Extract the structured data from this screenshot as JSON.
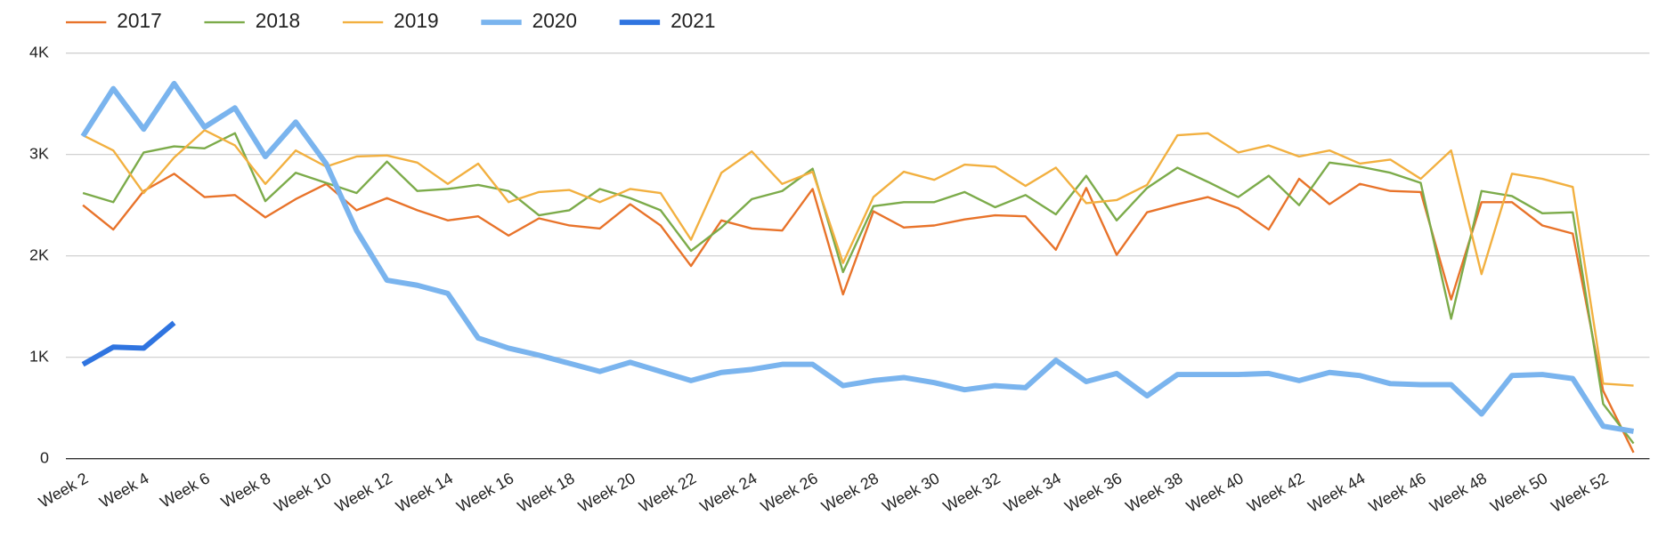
{
  "chart_data": {
    "type": "line",
    "categories": [
      "Week 2",
      null,
      "Week 4",
      null,
      "Week 6",
      null,
      "Week 8",
      null,
      "Week 10",
      null,
      "Week 12",
      null,
      "Week 14",
      null,
      "Week 16",
      null,
      "Week 18",
      null,
      "Week 20",
      null,
      "Week 22",
      null,
      "Week 24",
      null,
      "Week 26",
      null,
      "Week 28",
      null,
      "Week 30",
      null,
      "Week 32",
      null,
      "Week 34",
      null,
      "Week 36",
      null,
      "Week 38",
      null,
      "Week 40",
      null,
      "Week 42",
      null,
      "Week 44",
      null,
      "Week 46",
      null,
      "Week 48",
      null,
      "Week 50",
      null,
      "Week 52",
      null
    ],
    "series": [
      {
        "name": "2017",
        "color": "#e8732a",
        "line_width": 2,
        "values": [
          2500,
          2260,
          2640,
          2810,
          2580,
          2600,
          2380,
          2560,
          2710,
          2450,
          2570,
          2450,
          2350,
          2390,
          2200,
          2370,
          2300,
          2270,
          2510,
          2300,
          1900,
          2350,
          2270,
          2250,
          2660,
          1620,
          2440,
          2280,
          2300,
          2360,
          2400,
          2390,
          2060,
          2670,
          2010,
          2430,
          2510,
          2580,
          2470,
          2260,
          2760,
          2510,
          2710,
          2640,
          2630,
          1570,
          2530,
          2530,
          2300,
          2220,
          670,
          60
        ]
      },
      {
        "name": "2018",
        "color": "#7cab4a",
        "line_width": 2,
        "values": [
          2620,
          2530,
          3020,
          3080,
          3060,
          3210,
          2540,
          2820,
          2720,
          2620,
          2930,
          2640,
          2660,
          2700,
          2640,
          2400,
          2450,
          2660,
          2570,
          2450,
          2050,
          2280,
          2560,
          2640,
          2860,
          1840,
          2490,
          2530,
          2530,
          2630,
          2480,
          2600,
          2410,
          2790,
          2350,
          2670,
          2870,
          2730,
          2580,
          2790,
          2500,
          2920,
          2880,
          2820,
          2720,
          1380,
          2640,
          2590,
          2420,
          2430,
          540,
          150
        ]
      },
      {
        "name": "2019",
        "color": "#f2b040",
        "line_width": 2,
        "values": [
          3190,
          3040,
          2620,
          2970,
          3240,
          3090,
          2710,
          3040,
          2880,
          2980,
          2990,
          2920,
          2710,
          2910,
          2530,
          2630,
          2650,
          2530,
          2660,
          2620,
          2160,
          2820,
          3030,
          2710,
          2830,
          1930,
          2580,
          2830,
          2750,
          2900,
          2880,
          2690,
          2870,
          2520,
          2550,
          2700,
          3190,
          3210,
          3020,
          3090,
          2980,
          3040,
          2910,
          2950,
          2760,
          3040,
          1820,
          2810,
          2760,
          2680,
          740,
          720
        ]
      },
      {
        "name": "2020",
        "color": "#7ab4ee",
        "line_width": 5,
        "values": [
          3180,
          3650,
          3250,
          3700,
          3270,
          3460,
          2980,
          3320,
          2910,
          2250,
          1760,
          1710,
          1630,
          1190,
          1090,
          1020,
          940,
          860,
          950,
          860,
          770,
          850,
          880,
          930,
          930,
          720,
          770,
          800,
          750,
          680,
          720,
          700,
          970,
          760,
          840,
          620,
          830,
          830,
          830,
          840,
          770,
          850,
          820,
          740,
          730,
          730,
          440,
          820,
          830,
          790,
          320,
          270
        ]
      },
      {
        "name": "2021",
        "color": "#2f74e0",
        "line_width": 5,
        "values": [
          930,
          1100,
          1090,
          1340,
          null,
          null,
          null,
          null,
          null,
          null,
          null,
          null,
          null,
          null,
          null,
          null,
          null,
          null,
          null,
          null,
          null,
          null,
          null,
          null,
          null,
          null,
          null,
          null,
          null,
          null,
          null,
          null,
          null,
          null,
          null,
          null,
          null,
          null,
          null,
          null,
          null,
          null,
          null,
          null,
          null,
          null,
          null,
          null,
          null,
          null,
          null,
          null
        ]
      }
    ],
    "ylim": [
      0,
      4000
    ],
    "yticks": [
      0,
      {
        "value": 1000,
        "label": "1K"
      },
      {
        "value": 2000,
        "label": "2K"
      },
      {
        "value": 3000,
        "label": "3K"
      },
      {
        "value": 4000,
        "label": "4K"
      }
    ],
    "grid": true,
    "legend": "top"
  }
}
